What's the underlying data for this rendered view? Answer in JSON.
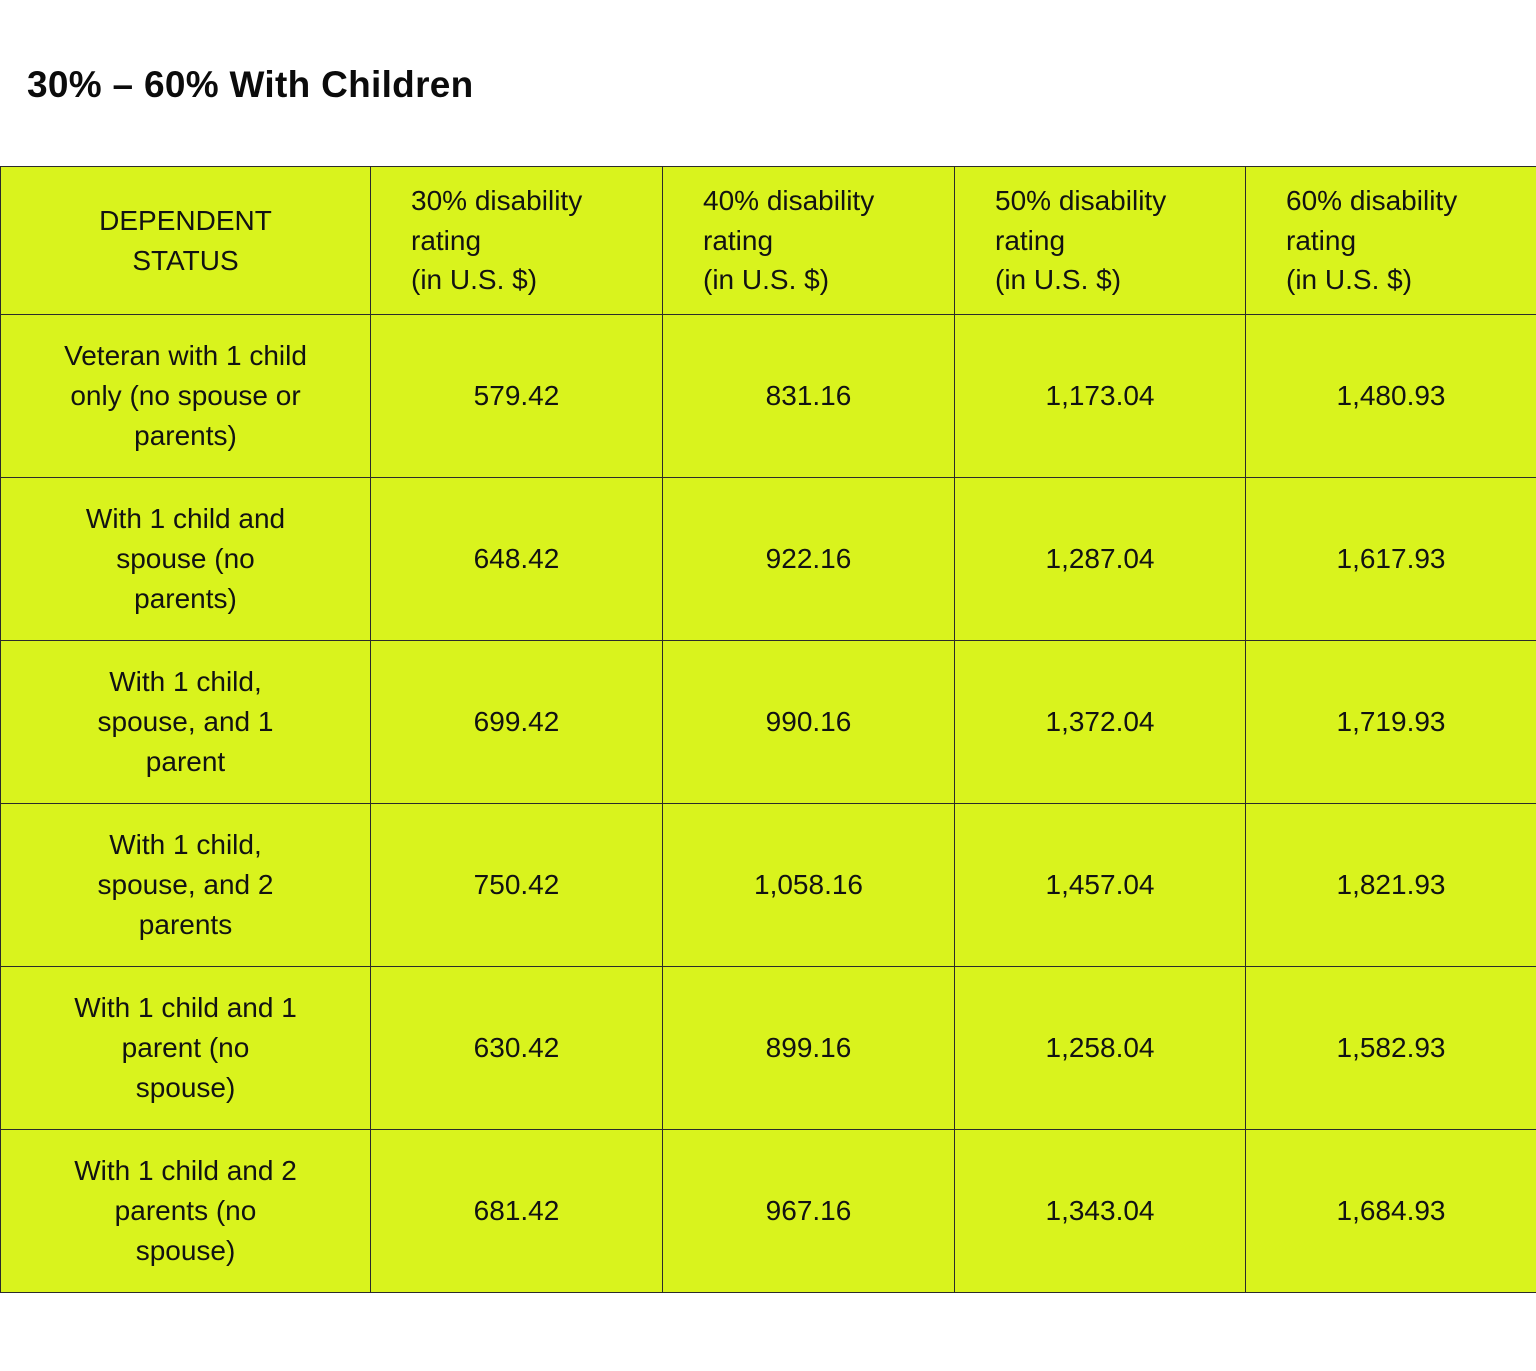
{
  "page": {
    "title": "30% – 60% With Children"
  },
  "colors": {
    "page_background": "#ffffff",
    "table_background": "#d9f31d",
    "border": "#2b2b2b",
    "text": "#121212"
  },
  "chart_data": {
    "type": "table",
    "title": "30% – 60% With Children",
    "columns": [
      "DEPENDENT\nSTATUS",
      "30% disability\nrating\n(in U.S. $)",
      "40% disability\nrating\n(in U.S. $)",
      "50% disability\nrating\n(in U.S. $)",
      "60% disability\nrating\n(in U.S. $)"
    ],
    "rows": [
      [
        "Veteran with 1 child\nonly (no spouse or\nparents)",
        "579.42",
        "831.16",
        "1,173.04",
        "1,480.93"
      ],
      [
        "With 1 child and\nspouse (no\nparents)",
        "648.42",
        "922.16",
        "1,287.04",
        "1,617.93"
      ],
      [
        "With 1 child,\nspouse, and 1\nparent",
        "699.42",
        "990.16",
        "1,372.04",
        "1,719.93"
      ],
      [
        "With 1 child,\nspouse, and 2\nparents",
        "750.42",
        "1,058.16",
        "1,457.04",
        "1,821.93"
      ],
      [
        "With 1 child and 1\nparent (no\nspouse)",
        "630.42",
        "899.16",
        "1,258.04",
        "1,582.93"
      ],
      [
        "With 1 child and 2\nparents (no\nspouse)",
        "681.42",
        "967.16",
        "1,343.04",
        "1,684.93"
      ]
    ]
  }
}
